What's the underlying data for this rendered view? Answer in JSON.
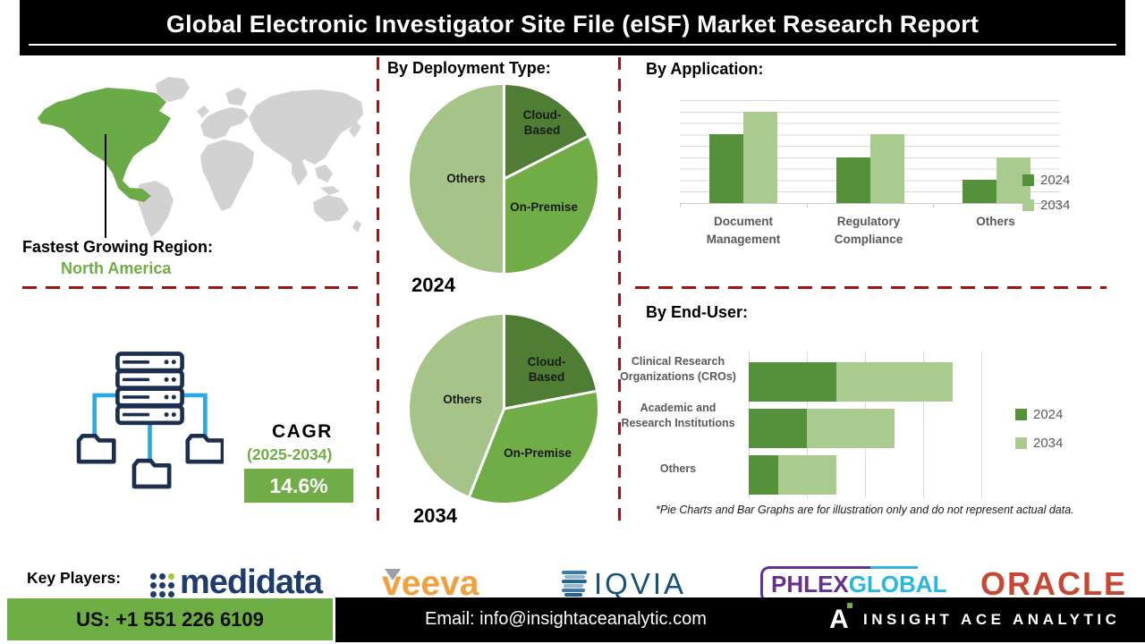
{
  "header": {
    "title": "Global Electronic Investigator Site File (eISF) Market Research Report"
  },
  "fastest_region": {
    "label": "Fastest Growing Region:",
    "value": "North America"
  },
  "cagr": {
    "label": "CAGR",
    "period": "(2025-2034)",
    "value": "14.6%"
  },
  "sections": {
    "deployment_title": "By Deployment Type:",
    "application_title": "By Application:",
    "enduser_title": "By End-User:",
    "footnote": "*Pie Charts and Bar Graphs are for illustration only and do not represent actual data."
  },
  "chart_data": [
    {
      "type": "pie",
      "group": "By Deployment Type",
      "year": "2024",
      "slices": [
        {
          "label": "Cloud-Based",
          "value": 17.5
        },
        {
          "label": "On-Premise",
          "value": 32.5
        },
        {
          "label": "Others",
          "value": 50
        }
      ],
      "colors": [
        "#4e7d33",
        "#70ad47",
        "#a6c48a"
      ]
    },
    {
      "type": "pie",
      "group": "By Deployment Type",
      "year": "2034",
      "slices": [
        {
          "label": "Cloud-Based",
          "value": 22
        },
        {
          "label": "On-Premise",
          "value": 34
        },
        {
          "label": "Others",
          "value": 44
        }
      ],
      "colors": [
        "#4e7d33",
        "#70ad47",
        "#a6c48a"
      ]
    },
    {
      "type": "bar",
      "group": "By Application",
      "categories": [
        "Document Management",
        "Regulatory Compliance",
        "Others"
      ],
      "series": [
        {
          "name": "2024",
          "color": "#55913b",
          "values": [
            6,
            4,
            2
          ]
        },
        {
          "name": "2034",
          "color": "#a9cb8e",
          "values": [
            8,
            6,
            4
          ]
        }
      ],
      "ylim": [
        0,
        9
      ],
      "grid": true,
      "legend_position": "right"
    },
    {
      "type": "stacked-bar-horizontal",
      "group": "By End-User",
      "categories": [
        "Clinical Research Organizations (CROs)",
        "Academic and Research Institutions",
        "Others"
      ],
      "series": [
        {
          "name": "2024",
          "color": "#55913b",
          "values": [
            1.5,
            1,
            0.5
          ]
        },
        {
          "name": "2034",
          "color": "#a9cb8e",
          "values": [
            2,
            1.5,
            1
          ]
        }
      ],
      "xlim": [
        0,
        4
      ],
      "grid": true,
      "legend_position": "right"
    }
  ],
  "key_players": {
    "label": "Key Players:",
    "items": [
      {
        "id": "medidata",
        "text": "medidata"
      },
      {
        "id": "veeva",
        "text": "veeva"
      },
      {
        "id": "iqvia",
        "text": "IQVIA"
      },
      {
        "id": "phlexglobal",
        "text_a": "PHLEX",
        "text_b": "GLOBAL"
      },
      {
        "id": "oracle",
        "text": "ORACLE"
      }
    ]
  },
  "footer": {
    "phone": "US: +1 551 226 6109",
    "email": "Email: info@insightaceanalytic.com",
    "brand": "INSIGHT ACE ANALYTIC"
  },
  "colors": {
    "ink": "#111111",
    "chart_text": "#595959",
    "grid": "#d9d9d9",
    "dash_red": "#a01313",
    "green_mid": "#70ad47",
    "green_dark": "#4e7d33",
    "green_light": "#a9cb8e",
    "green_bar": "#55913b",
    "map_gray": "#d2d2d2",
    "map_green": "#6aaa47",
    "navy": "#1d3c6b",
    "icon_navy": "#1b2e4f",
    "icon_cyan": "#29abe2",
    "veeva_orange": "#f0a03c",
    "veeva_gray": "#9aa0a6",
    "iqvia_blue": "#14527c",
    "phlex_purple": "#65308f",
    "phlex_cyan": "#29b6e0",
    "oracle_red": "#c74634",
    "footer_green": "#6fae44"
  }
}
